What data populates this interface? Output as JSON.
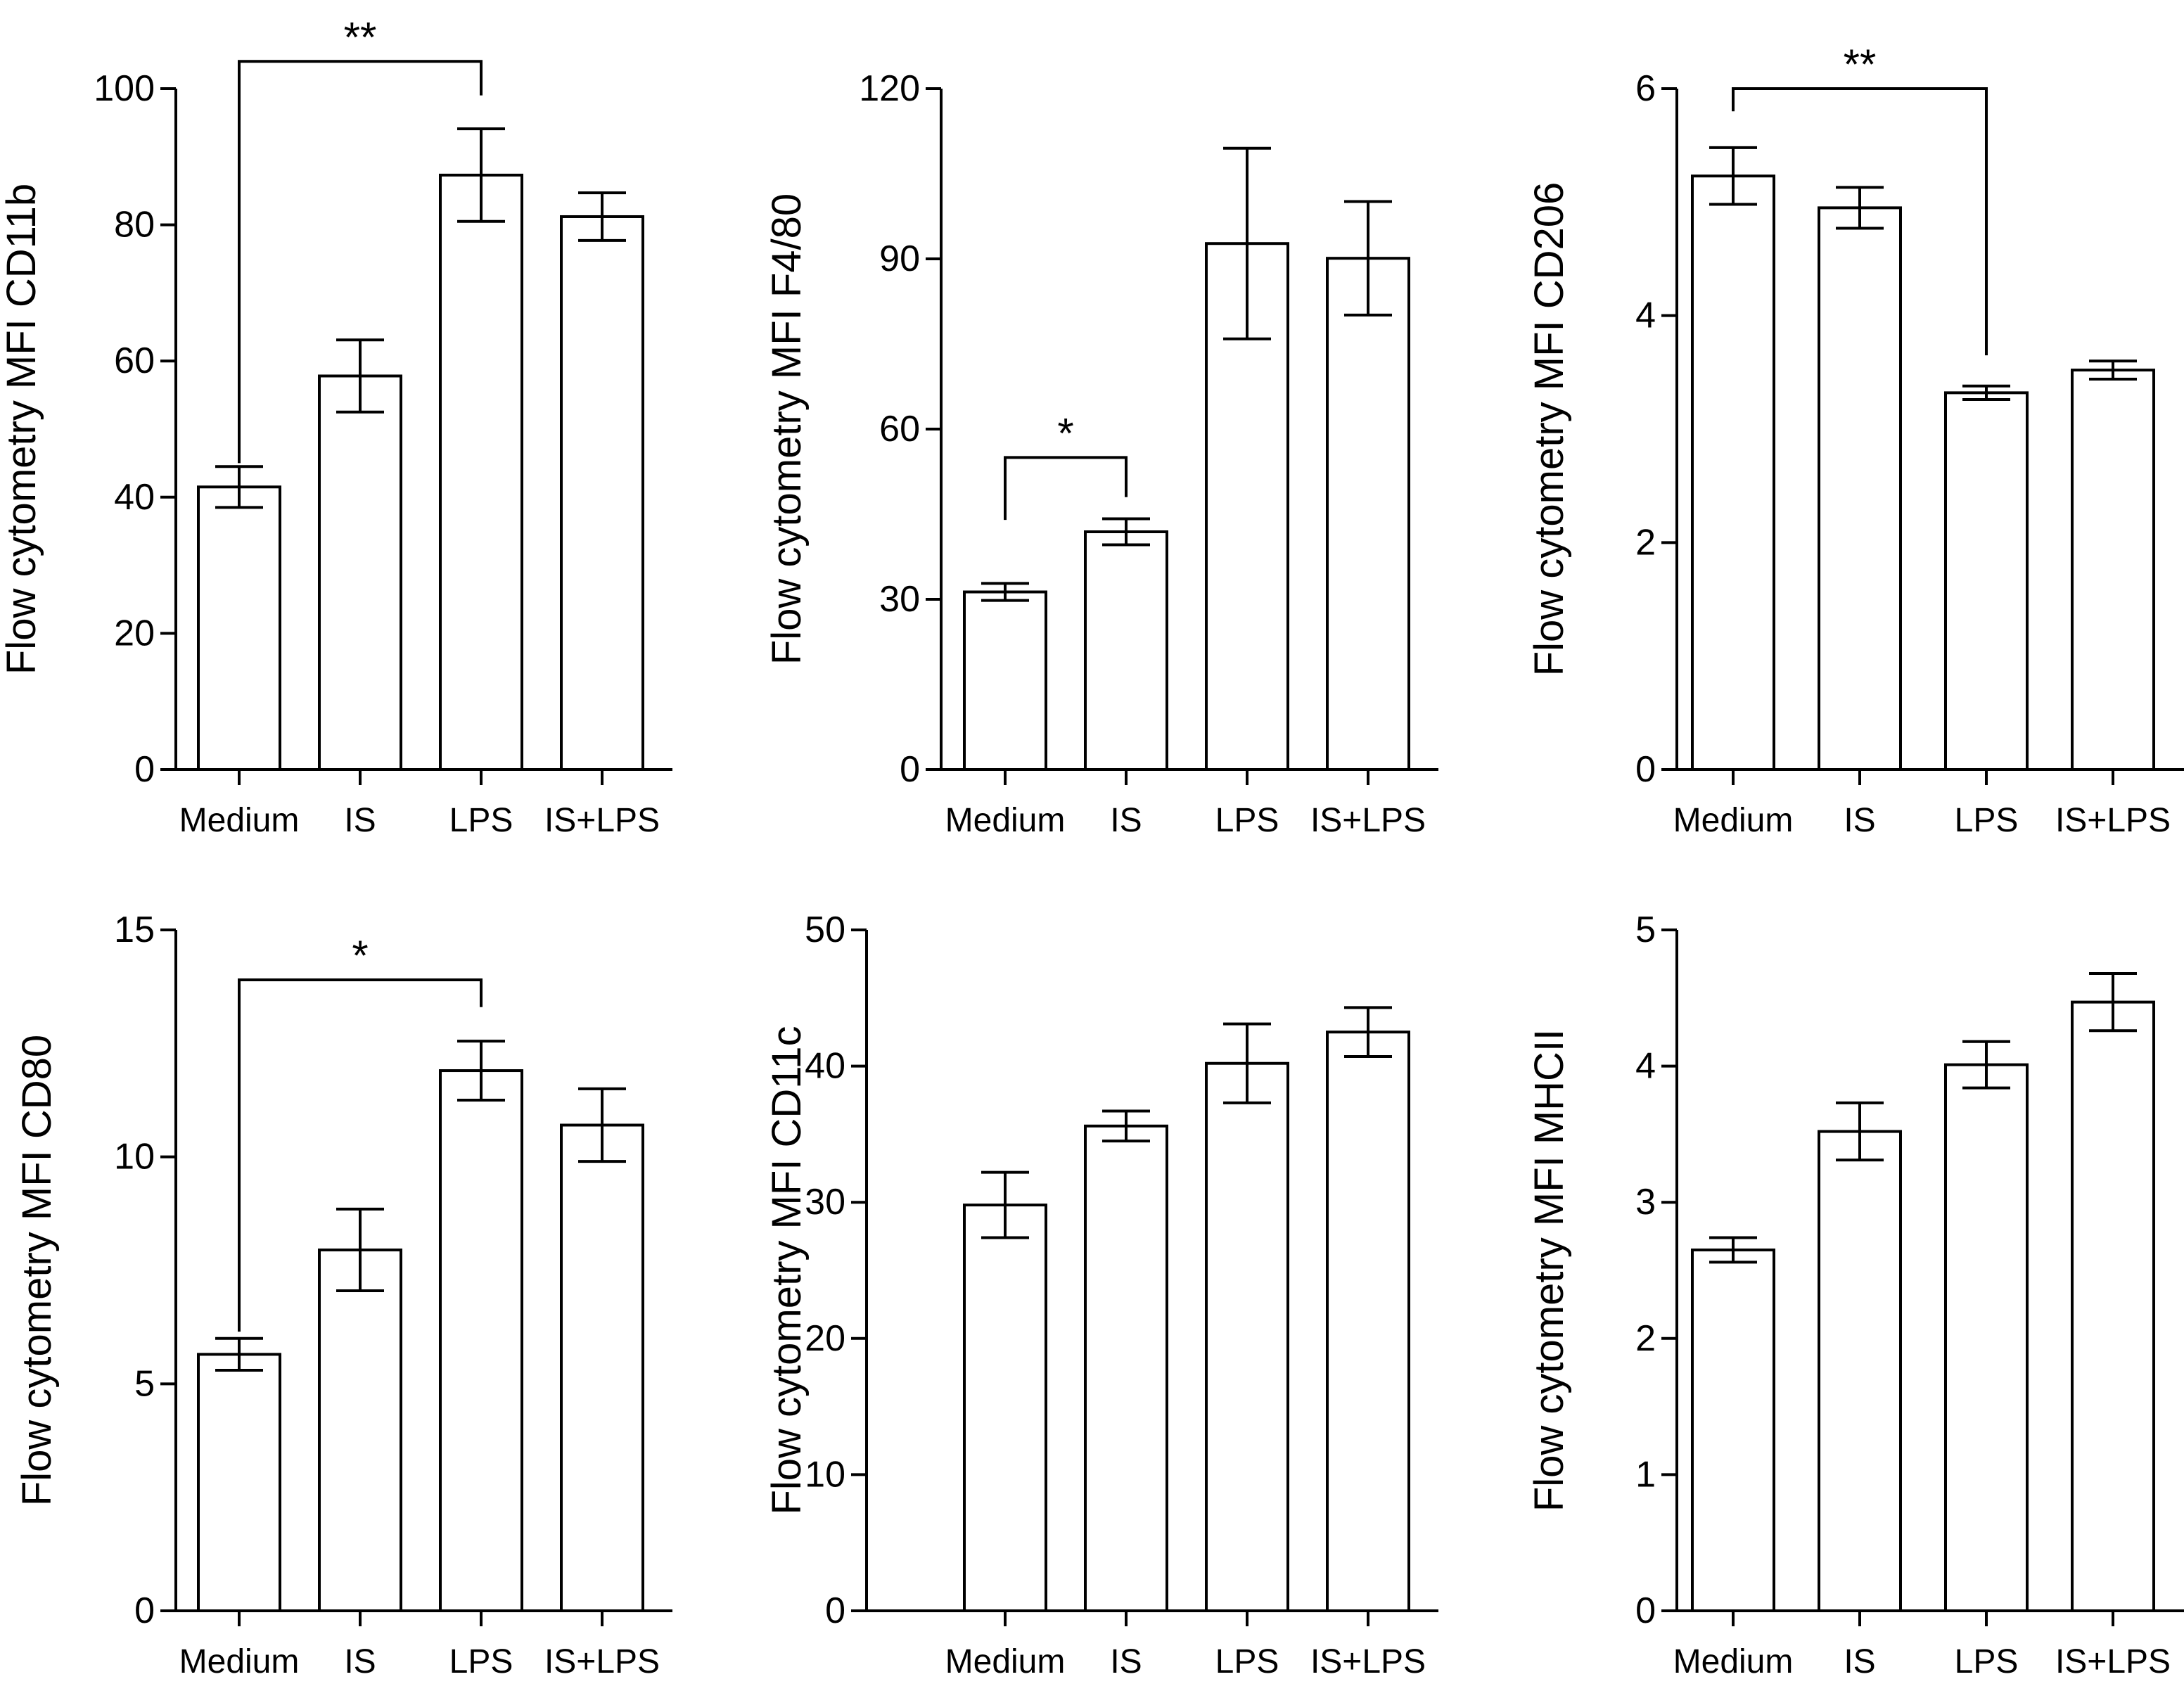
{
  "chart_data": [
    {
      "type": "bar",
      "ylabel": "Flow cytometry MFI CD11b",
      "categories": [
        "Medium",
        "IS",
        "LPS",
        "IS+LPS"
      ],
      "values": [
        41.5,
        57.8,
        87.3,
        81.2
      ],
      "errors": [
        3.0,
        5.3,
        6.8,
        3.5
      ],
      "ylim": [
        0,
        100
      ],
      "yticks": [
        0,
        20,
        40,
        60,
        80,
        100
      ],
      "significance": [
        {
          "from": "Medium",
          "to": "LPS",
          "label": "**",
          "y": 104,
          "left_drop": 45,
          "right_drop": 99
        }
      ]
    },
    {
      "type": "bar",
      "ylabel": "Flow cytometry MFI F4/80",
      "categories": [
        "Medium",
        "IS",
        "LPS",
        "IS+LPS"
      ],
      "values": [
        31.3,
        41.9,
        92.7,
        90.1
      ],
      "errors": [
        1.5,
        2.3,
        16.8,
        10.0
      ],
      "ylim": [
        0,
        120
      ],
      "yticks": [
        0,
        30,
        60,
        90,
        120
      ],
      "significance": [
        {
          "from": "Medium",
          "to": "IS",
          "label": "*",
          "y": 55,
          "left_drop": 44,
          "right_drop": 48
        }
      ]
    },
    {
      "type": "bar",
      "ylabel": "Flow cytometry MFI CD206",
      "categories": [
        "Medium",
        "IS",
        "LPS",
        "IS+LPS"
      ],
      "values": [
        5.23,
        4.95,
        3.32,
        3.52
      ],
      "errors": [
        0.25,
        0.18,
        0.06,
        0.08
      ],
      "ylim": [
        0,
        6
      ],
      "yticks": [
        0,
        2,
        4,
        6
      ],
      "significance": [
        {
          "from": "Medium",
          "to": "LPS",
          "label": "**",
          "y": 6.0,
          "left_drop": 5.8,
          "right_drop": 3.65
        }
      ]
    },
    {
      "type": "bar",
      "ylabel": "Flow cytometry MFI CD80",
      "categories": [
        "Medium",
        "IS",
        "LPS",
        "IS+LPS"
      ],
      "values": [
        5.65,
        7.95,
        11.9,
        10.7
      ],
      "errors": [
        0.35,
        0.9,
        0.65,
        0.8
      ],
      "ylim": [
        0,
        15
      ],
      "yticks": [
        0,
        5,
        10,
        15
      ],
      "significance": [
        {
          "from": "Medium",
          "to": "LPS",
          "label": "*",
          "y": 13.9,
          "left_drop": 6.15,
          "right_drop": 13.3
        }
      ]
    },
    {
      "type": "bar",
      "ylabel": "Flow cytometry MFI CD11c",
      "categories": [
        "Medium",
        "IS",
        "LPS",
        "IS+LPS"
      ],
      "values": [
        29.8,
        35.6,
        40.2,
        42.5
      ],
      "errors": [
        2.4,
        1.1,
        2.9,
        1.8
      ],
      "ylim": [
        0,
        50
      ],
      "yticks": [
        0,
        10,
        20,
        30,
        40,
        50
      ],
      "significance": []
    },
    {
      "type": "bar",
      "ylabel": "Flow cytometry MFI MHCII",
      "categories": [
        "Medium",
        "IS",
        "LPS",
        "IS+LPS"
      ],
      "values": [
        2.65,
        3.52,
        4.01,
        4.47
      ],
      "errors": [
        0.09,
        0.21,
        0.17,
        0.21
      ],
      "ylim": [
        0,
        5
      ],
      "yticks": [
        0,
        1,
        2,
        3,
        4,
        5
      ],
      "significance": []
    }
  ]
}
